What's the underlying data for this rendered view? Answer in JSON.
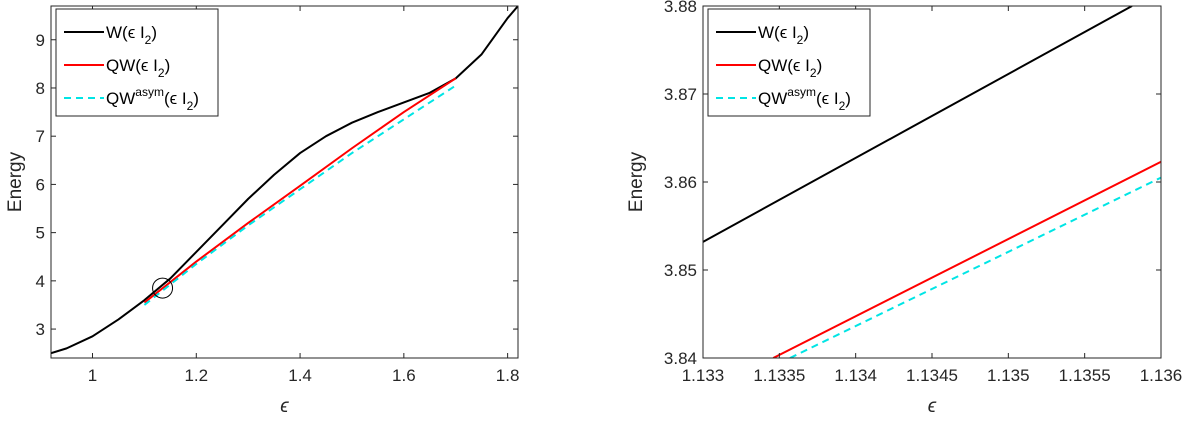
{
  "chart_data": [
    {
      "type": "line",
      "xlabel": "ϵ",
      "ylabel": "Energy",
      "xlim": [
        0.92,
        1.82
      ],
      "ylim": [
        2.4,
        9.7
      ],
      "xticks": [
        1,
        1.2,
        1.4,
        1.6,
        1.8
      ],
      "xtick_labels": [
        "1",
        "1.2",
        "1.4",
        "1.6",
        "1.8"
      ],
      "yticks": [
        3,
        4,
        5,
        6,
        7,
        8,
        9
      ],
      "ytick_labels": [
        "3",
        "4",
        "5",
        "6",
        "7",
        "8",
        "9"
      ],
      "grid": false,
      "legend_position": "top-left",
      "series": [
        {
          "name": "W(ϵ I2)",
          "legend": {
            "base": "W(ϵ I",
            "sub": "2",
            "end": ")"
          },
          "color": "#000000",
          "style": "solid",
          "x": [
            0.92,
            0.95,
            1.0,
            1.05,
            1.1,
            1.15,
            1.2,
            1.25,
            1.3,
            1.35,
            1.4,
            1.45,
            1.5,
            1.55,
            1.6,
            1.65,
            1.7,
            1.75,
            1.8,
            1.82
          ],
          "y": [
            2.5,
            2.6,
            2.85,
            3.2,
            3.6,
            4.05,
            4.6,
            5.15,
            5.7,
            6.2,
            6.65,
            7.0,
            7.28,
            7.5,
            7.7,
            7.9,
            8.2,
            8.7,
            9.45,
            9.7
          ]
        },
        {
          "name": "QW(ϵ I2)",
          "legend": {
            "base": "QW(ϵ I",
            "sub": "2",
            "end": ")"
          },
          "color": "#ff0000",
          "style": "solid",
          "x": [
            1.1,
            1.133,
            1.2,
            1.3,
            1.4,
            1.5,
            1.6,
            1.7
          ],
          "y": [
            3.55,
            3.83,
            4.4,
            5.2,
            5.97,
            6.75,
            7.5,
            8.2
          ]
        },
        {
          "name": "QWasym(ϵ I2)",
          "legend": {
            "base": "QW",
            "sup": "asym",
            "mid": "(ϵ I",
            "sub": "2",
            "end": ")"
          },
          "color": "#00e5e5",
          "style": "dashed",
          "x": [
            1.1,
            1.2,
            1.3,
            1.4,
            1.5,
            1.6,
            1.7
          ],
          "y": [
            3.5,
            4.35,
            5.15,
            5.9,
            6.65,
            7.35,
            8.05
          ]
        }
      ],
      "annotations": [
        {
          "type": "circle",
          "x": 1.135,
          "y": 3.85
        }
      ]
    },
    {
      "type": "line",
      "xlabel": "ϵ",
      "ylabel": "Energy",
      "xlim": [
        1.133,
        1.136
      ],
      "ylim": [
        3.84,
        3.88
      ],
      "xticks": [
        1.133,
        1.1335,
        1.134,
        1.1345,
        1.135,
        1.1355,
        1.136
      ],
      "xtick_labels": [
        "1.133",
        "1.1335",
        "1.134",
        "1.1345",
        "1.135",
        "1.1355",
        "1.136"
      ],
      "yticks": [
        3.84,
        3.85,
        3.86,
        3.87,
        3.88
      ],
      "ytick_labels": [
        "3.84",
        "3.85",
        "3.86",
        "3.87",
        "3.88"
      ],
      "grid": false,
      "legend_position": "top-left",
      "series": [
        {
          "name": "W(ϵ I2)",
          "legend": {
            "base": "W(ϵ I",
            "sub": "2",
            "end": ")"
          },
          "color": "#000000",
          "style": "solid",
          "x": [
            1.133,
            1.13581
          ],
          "y": [
            3.8532,
            3.88
          ]
        },
        {
          "name": "QW(ϵ I2)",
          "legend": {
            "base": "QW(ϵ I",
            "sub": "2",
            "end": ")"
          },
          "color": "#ff0000",
          "style": "solid",
          "x": [
            1.13346,
            1.136
          ],
          "y": [
            3.84,
            3.8623
          ]
        },
        {
          "name": "QWasym(ϵ I2)",
          "legend": {
            "base": "QW",
            "sup": "asym",
            "mid": "(ϵ I",
            "sub": "2",
            "end": ")"
          },
          "color": "#00e5e5",
          "style": "dashed",
          "x": [
            1.13357,
            1.136
          ],
          "y": [
            3.84,
            3.8605
          ]
        }
      ]
    }
  ]
}
